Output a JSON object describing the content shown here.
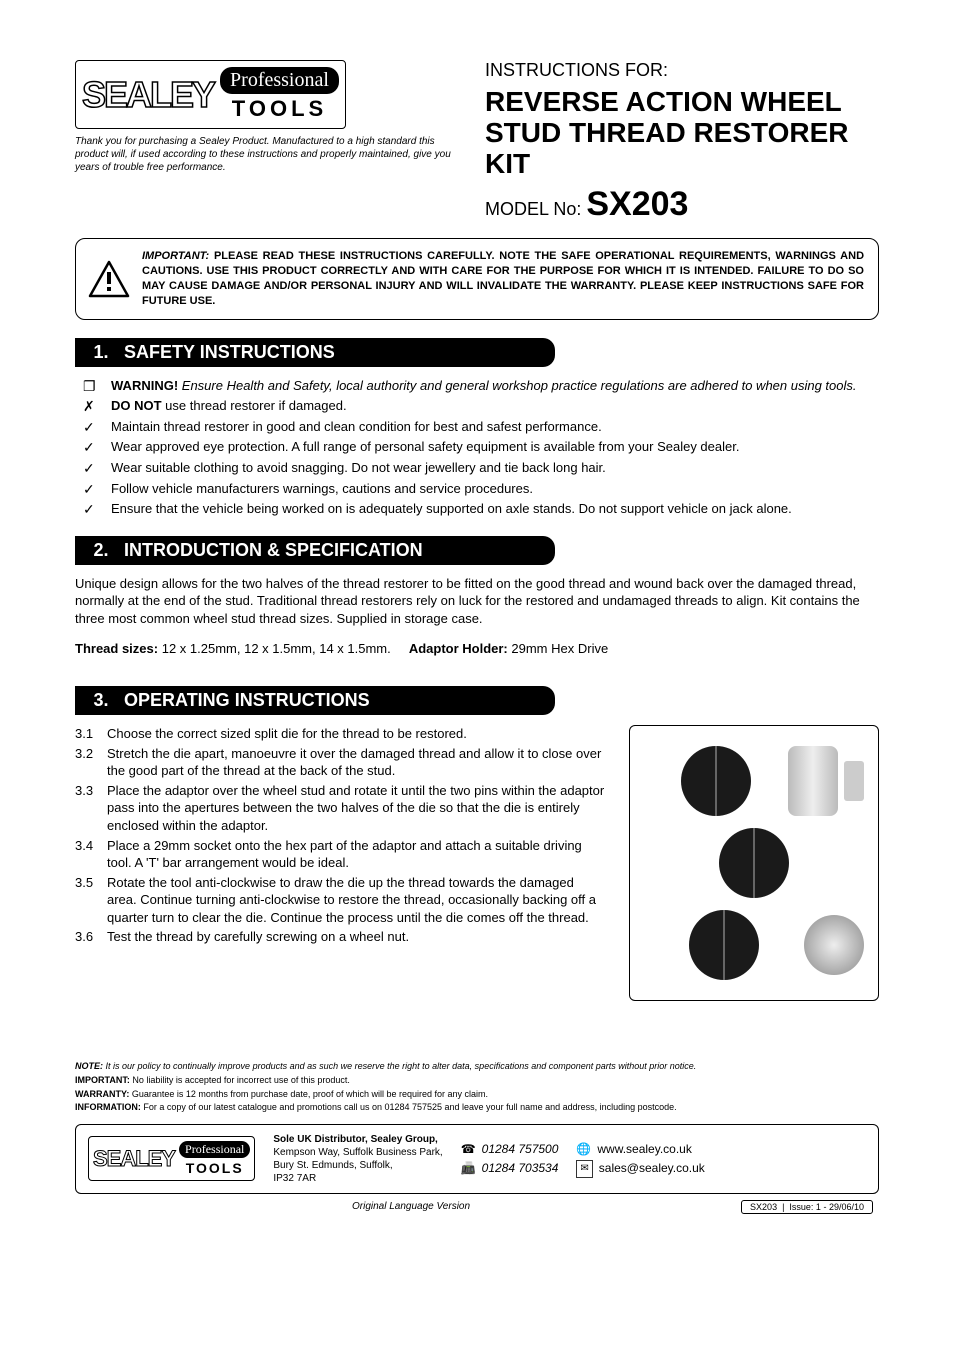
{
  "brand": {
    "name": "SEALEY",
    "sub_script": "Professional",
    "sub_tools": "TOOLS"
  },
  "header": {
    "thankyou": "Thank you for purchasing a Sealey Product. Manufactured to a high standard this product will, if used according to these instructions and properly maintained, give you years of trouble free performance.",
    "instructions_for": "INSTRUCTIONS FOR:",
    "product_title": "REVERSE ACTION WHEEL STUD THREAD RESTORER KIT",
    "model_label": "MODEL No:",
    "model_no": "SX203"
  },
  "important": {
    "lead": "IMPORTANT:",
    "text": "PLEASE READ THESE INSTRUCTIONS CAREFULLY. NOTE THE SAFE OPERATIONAL REQUIREMENTS, WARNINGS AND CAUTIONS. USE THIS PRODUCT CORRECTLY AND WITH CARE FOR THE PURPOSE FOR WHICH IT IS INTENDED. FAILURE TO DO SO MAY CAUSE DAMAGE AND/OR PERSONAL INJURY AND WILL INVALIDATE THE WARRANTY. PLEASE KEEP INSTRUCTIONS SAFE FOR FUTURE USE."
  },
  "sections": {
    "safety": {
      "num": "1.",
      "title": "SAFETY INSTRUCTIONS"
    },
    "intro": {
      "num": "2.",
      "title": "INTRODUCTION & SPECIFICATION"
    },
    "operating": {
      "num": "3.",
      "title": "OPERATING INSTRUCTIONS"
    }
  },
  "safety_items": [
    {
      "bullet": "❐",
      "html_bold": "WARNING!",
      "text": " Ensure Health and Safety, local authority and general workshop practice regulations are adhered to when using tools.",
      "italic": true
    },
    {
      "bullet": "✗",
      "html_bold": "DO NOT",
      "text": " use thread restorer if damaged."
    },
    {
      "bullet": "✓",
      "text": "Maintain thread restorer in good and clean condition for best and safest performance."
    },
    {
      "bullet": "✓",
      "text": "Wear approved eye protection. A full range of personal safety equipment is available from your Sealey dealer."
    },
    {
      "bullet": "✓",
      "text": "Wear suitable clothing to avoid snagging.  Do not wear jewellery and tie back long hair."
    },
    {
      "bullet": "✓",
      "text": "Follow vehicle manufacturers warnings, cautions and service procedures."
    },
    {
      "bullet": "✓",
      "text": "Ensure that the vehicle being worked on is adequately supported on axle stands. Do not support vehicle on jack alone."
    }
  ],
  "intro_text": "Unique design allows for the two halves of the thread restorer to be fitted on the good thread and wound back over the damaged thread, normally at the end of the stud. Traditional thread restorers rely on luck for the restored and undamaged threads to align. Kit contains the three most common wheel stud thread sizes. Supplied in storage case.",
  "spec": {
    "thread_label": "Thread sizes:",
    "thread_values": "12 x 1.25mm, 12 x 1.5mm, 14 x 1.5mm.",
    "holder_label": "Adaptor Holder:",
    "holder_value": "29mm Hex Drive"
  },
  "operating_items": [
    {
      "idx": "3.1",
      "text": "Choose the correct sized split die for the thread to be restored."
    },
    {
      "idx": "3.2",
      "text": "Stretch the die apart, manoeuvre it over the damaged thread and allow it to close over the good part of the thread at the back of the stud."
    },
    {
      "idx": "3.3",
      "text": "Place the adaptor over the wheel stud and rotate it until the two pins within the adaptor pass into the apertures between the two halves of the die so that the die is entirely enclosed within the adaptor."
    },
    {
      "idx": "3.4",
      "text": "Place a 29mm socket onto the hex part of the adaptor and attach a suitable driving tool. A 'T' bar arrangement would be ideal."
    },
    {
      "idx": "3.5",
      "text": "Rotate the tool anti-clockwise to draw the die up the thread towards the damaged area. Continue turning anti-clockwise to restore the thread, occasionally backing off a quarter turn to clear the die. Continue the process until the die comes off the thread."
    },
    {
      "idx": "3.6",
      "text": "Test the thread by carefully screwing on a wheel nut."
    }
  ],
  "notes": {
    "note_lead": "NOTE:",
    "note": " It is our policy to continually improve products and as such we reserve the right to alter data, specifications and component parts without prior notice.",
    "important_lead": "IMPORTANT:",
    "important": " No liability is accepted for incorrect use of this product.",
    "warranty_lead": "WARRANTY:",
    "warranty": " Guarantee is 12 months from purchase date, proof of which will be required for any claim.",
    "info_lead": "INFORMATION:",
    "info": " For a copy of our latest catalogue and promotions call us on 01284 757525 and leave your full name and address, including postcode."
  },
  "footer": {
    "addr_title": "Sole UK Distributor, Sealey Group,",
    "addr_l1": "Kempson Way, Suffolk Business Park,",
    "addr_l2": "Bury St. Edmunds, Suffolk,",
    "addr_l3": "IP32 7AR",
    "phone": "01284 757500",
    "fax": "01284 703534",
    "web": "www.sealey.co.uk",
    "email": "sales@sealey.co.uk"
  },
  "bottom": {
    "orig": "Original Language Version",
    "code": "SX203",
    "issue": "Issue: 1 - 29/06/10"
  },
  "colors": {
    "bar_bg": "#000000",
    "bar_fg": "#ffffff",
    "text": "#000000"
  },
  "icons": {
    "phone": "☎",
    "fax": "📠",
    "web": "🌐",
    "email": "✉"
  }
}
